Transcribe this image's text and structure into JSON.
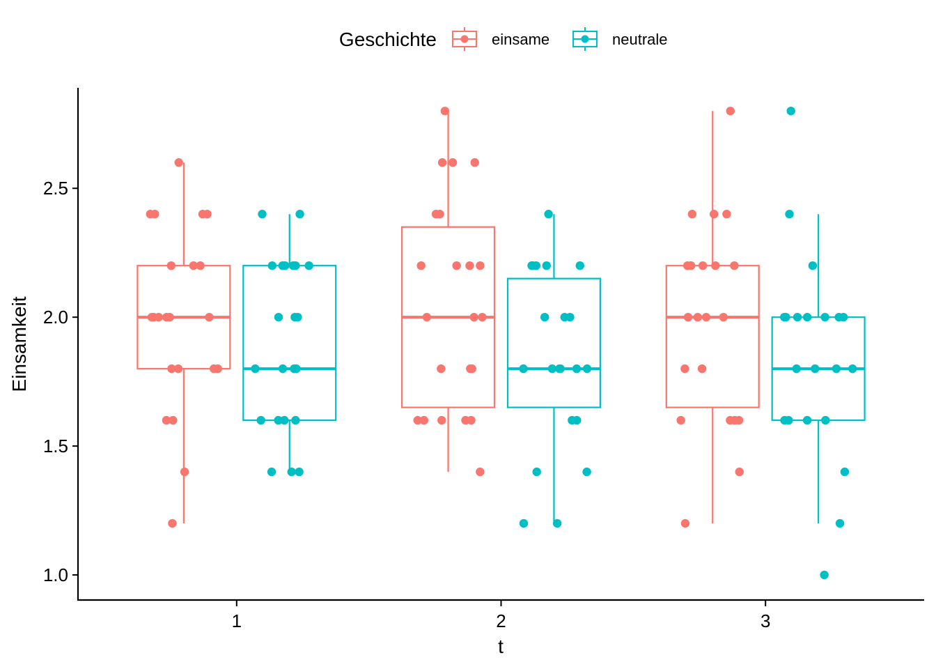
{
  "chart_data": {
    "type": "boxplot",
    "xlabel": "t",
    "ylabel": "Einsamkeit",
    "categories": [
      "1",
      "2",
      "3"
    ],
    "ylim": [
      0.9,
      2.89
    ],
    "yticks": [
      1.0,
      1.5,
      2.0,
      2.5
    ],
    "ytick_labels": [
      "1.0",
      "1.5",
      "2.0",
      "2.5"
    ],
    "grid": false,
    "legend": {
      "title": "Geschichte",
      "position": "top",
      "entries": [
        "einsame",
        "neutrale"
      ]
    },
    "series": [
      {
        "name": "einsame",
        "color": "#F8766D",
        "boxes": [
          {
            "category": "1",
            "q1": 1.8,
            "median": 2.0,
            "q3": 2.2,
            "whisker_low": 1.2,
            "whisker_high": 2.6
          },
          {
            "category": "2",
            "q1": 1.65,
            "median": 2.0,
            "q3": 2.35,
            "whisker_low": 1.4,
            "whisker_high": 2.8
          },
          {
            "category": "3",
            "q1": 1.65,
            "median": 2.0,
            "q3": 2.2,
            "whisker_low": 1.2,
            "whisker_high": 2.8
          }
        ],
        "points": [
          {
            "category": "1",
            "values": [
              2.6,
              2.4,
              2.4,
              2.4,
              2.4,
              2.2,
              2.2,
              2.2,
              2.0,
              2.0,
              2.0,
              2.0,
              2.0,
              2.0,
              1.8,
              1.8,
              1.8,
              1.8,
              1.6,
              1.6,
              1.4,
              1.2
            ]
          },
          {
            "category": "2",
            "values": [
              2.8,
              2.6,
              2.6,
              2.6,
              2.4,
              2.4,
              2.2,
              2.2,
              2.2,
              2.2,
              2.0,
              2.0,
              2.0,
              1.8,
              1.8,
              1.8,
              1.6,
              1.6,
              1.6,
              1.6,
              1.6,
              1.4
            ]
          },
          {
            "category": "3",
            "values": [
              2.8,
              2.4,
              2.4,
              2.4,
              2.2,
              2.2,
              2.2,
              2.2,
              2.2,
              2.2,
              2.0,
              2.0,
              2.0,
              2.0,
              1.8,
              1.8,
              1.6,
              1.6,
              1.6,
              1.6,
              1.4,
              1.2
            ]
          }
        ]
      },
      {
        "name": "neutrale",
        "color": "#00BFC4",
        "boxes": [
          {
            "category": "1",
            "q1": 1.6,
            "median": 1.8,
            "q3": 2.2,
            "whisker_low": 1.4,
            "whisker_high": 2.4
          },
          {
            "category": "2",
            "q1": 1.65,
            "median": 1.8,
            "q3": 2.15,
            "whisker_low": 1.2,
            "whisker_high": 2.4
          },
          {
            "category": "3",
            "q1": 1.6,
            "median": 1.8,
            "q3": 2.0,
            "whisker_low": 1.2,
            "whisker_high": 2.4
          }
        ],
        "points": [
          {
            "category": "1",
            "values": [
              2.4,
              2.4,
              2.2,
              2.2,
              2.2,
              2.2,
              2.2,
              2.2,
              2.0,
              2.0,
              2.0,
              1.8,
              1.8,
              1.8,
              1.8,
              1.6,
              1.6,
              1.6,
              1.6,
              1.4,
              1.4,
              1.4
            ]
          },
          {
            "category": "2",
            "values": [
              2.4,
              2.2,
              2.2,
              2.2,
              2.2,
              2.2,
              2.0,
              2.0,
              2.0,
              1.8,
              1.8,
              1.8,
              1.8,
              1.8,
              1.8,
              1.6,
              1.6,
              1.4,
              1.4,
              1.2,
              1.2
            ]
          },
          {
            "category": "3",
            "values": [
              2.8,
              2.4,
              2.2,
              2.0,
              2.0,
              2.0,
              2.0,
              2.0,
              2.0,
              2.0,
              1.8,
              1.8,
              1.8,
              1.8,
              1.6,
              1.6,
              1.6,
              1.6,
              1.4,
              1.2,
              1.0
            ]
          }
        ]
      }
    ]
  }
}
